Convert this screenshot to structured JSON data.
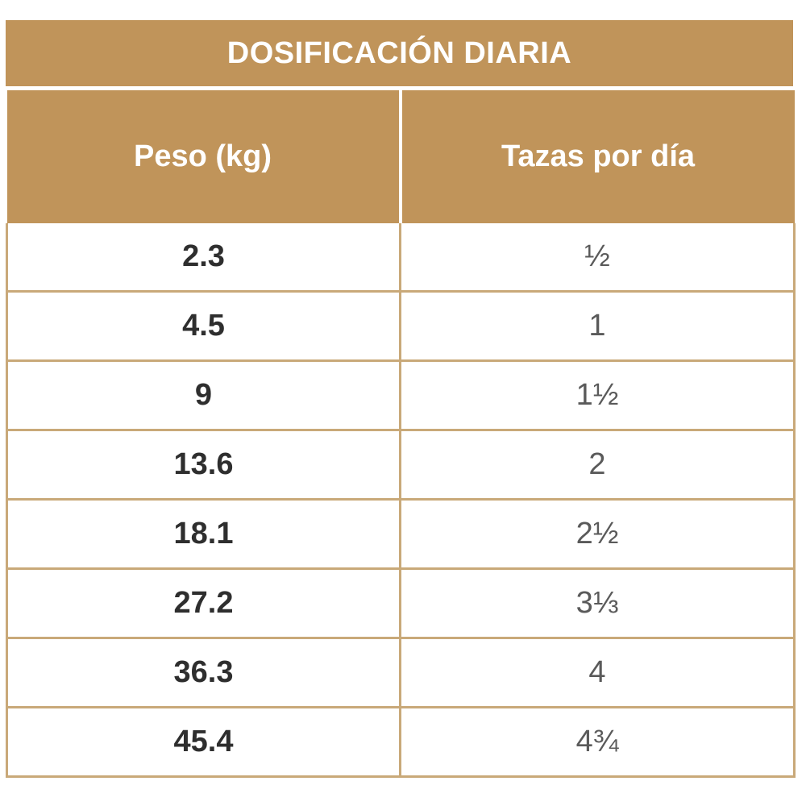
{
  "title": "DOSIFICACIÓN DIARIA",
  "headers": {
    "weight": "Peso (kg)",
    "cups": "Tazas por día"
  },
  "rows": [
    {
      "weight": "2.3",
      "cups": "½"
    },
    {
      "weight": "4.5",
      "cups": "1"
    },
    {
      "weight": "9",
      "cups": "1½"
    },
    {
      "weight": "13.6",
      "cups": "2"
    },
    {
      "weight": "18.1",
      "cups": "2½"
    },
    {
      "weight": "27.2",
      "cups": "3⅓"
    },
    {
      "weight": "36.3",
      "cups": "4"
    },
    {
      "weight": "45.4",
      "cups": "4¾"
    }
  ],
  "colors": {
    "header_bg": "#c0945a",
    "border": "#c9a979",
    "weight_text": "#2e2e2e",
    "cups_text": "#5a5a5a"
  }
}
